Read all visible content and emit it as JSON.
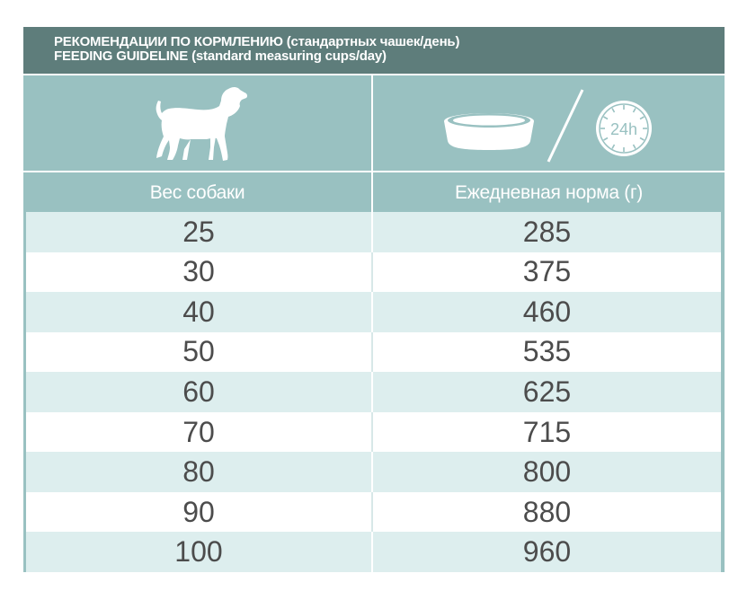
{
  "title": {
    "line1_bold": "РЕКОМЕНДАЦИИ ПО КОРМЛЕНИЮ",
    "line1_rest": " (стандартных чашек/день)",
    "line2_bold": "FEEDING GUIDELINE",
    "line2_rest": " (standard measuring cups/day)"
  },
  "icons": {
    "left": "dog-icon",
    "right_bowl": "bowl-icon",
    "right_slash": "slash-icon",
    "right_clock": "clock-24h-icon",
    "clock_label": "24h"
  },
  "headers": {
    "col1": "Вес собаки",
    "col2": "Ежедневная норма (г)"
  },
  "rows": [
    {
      "weight": "25",
      "amount": "285"
    },
    {
      "weight": "30",
      "amount": "375"
    },
    {
      "weight": "40",
      "amount": "460"
    },
    {
      "weight": "50",
      "amount": "535"
    },
    {
      "weight": "60",
      "amount": "625"
    },
    {
      "weight": "70",
      "amount": "715"
    },
    {
      "weight": "80",
      "amount": "800"
    },
    {
      "weight": "90",
      "amount": "880"
    },
    {
      "weight": "100",
      "amount": "960"
    }
  ],
  "colors": {
    "title_bar": "#5e7d7b",
    "panel": "#99c1c1",
    "row_alt": "#ddeeee",
    "row_plain": "#ffffff",
    "text": "#4c4c4c"
  }
}
